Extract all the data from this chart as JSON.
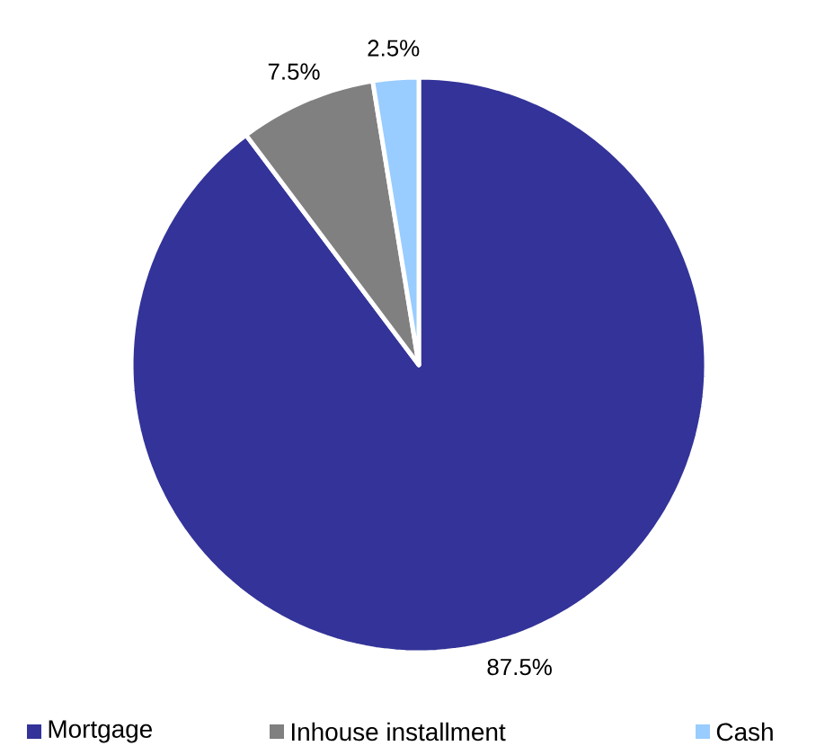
{
  "chart_data": {
    "type": "pie",
    "categories": [
      "Mortgage",
      "Inhouse installment",
      "Cash"
    ],
    "values": [
      87.5,
      7.5,
      2.5
    ],
    "value_labels": [
      "87.5%",
      "7.5%",
      "2.5%"
    ],
    "colors": [
      "#333399",
      "#808080",
      "#99ccff"
    ],
    "legend": "bottom"
  }
}
